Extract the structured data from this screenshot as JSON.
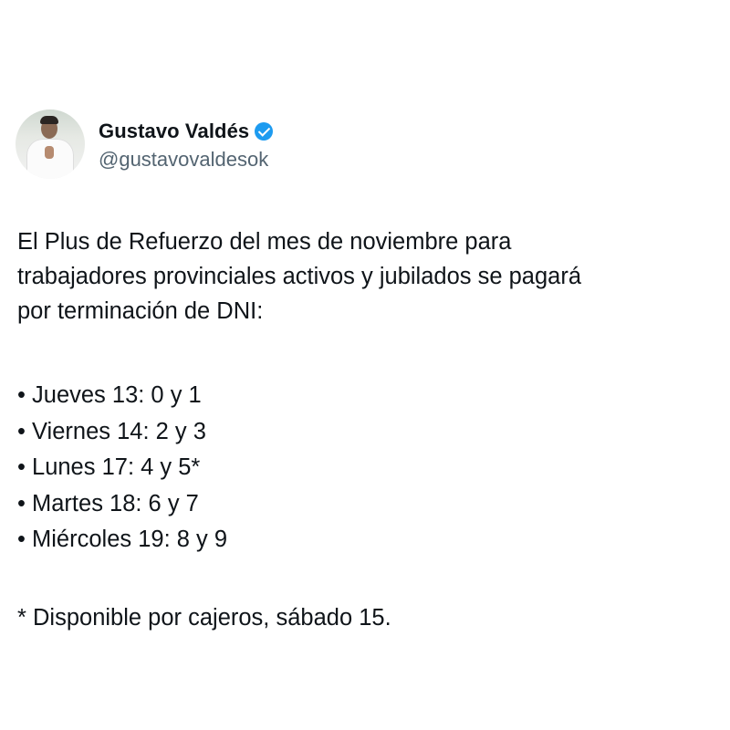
{
  "author": {
    "name": "Gustavo Valdés",
    "handle": "@gustavovaldesok",
    "verified_badge_icon": "verified-check-icon",
    "badge_color": "#1d9bf0"
  },
  "post": {
    "lines": [
      "El Plus de Refuerzo del mes de noviembre para",
      "trabajadores provinciales activos y jubilados se pagará",
      "por terminación de DNI:"
    ],
    "bullets": [
      "• Jueves 13: 0 y 1",
      "• Viernes 14: 2 y 3",
      "• Lunes 17: 4 y 5*",
      "• Martes 18: 6 y 7",
      "• Miércoles 19: 8 y 9"
    ],
    "footnote": "* Disponible por cajeros, sábado 15."
  }
}
